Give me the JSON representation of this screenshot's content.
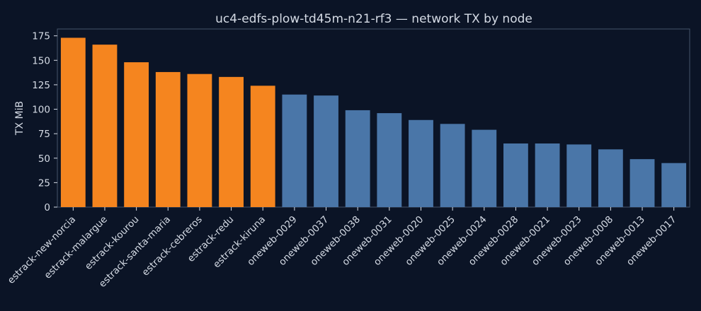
{
  "chart_data": {
    "type": "bar",
    "title": "uc4-edfs-plow-td45m-n21-rf3 — network TX by node",
    "xlabel": "",
    "ylabel": "TX MiB",
    "ylim": [
      0,
      182
    ],
    "yticks": [
      0,
      25,
      50,
      75,
      100,
      125,
      150,
      175
    ],
    "grid": false,
    "categories": [
      "estrack-new-norcia",
      "estrack-malargue",
      "estrack-kourou",
      "estrack-santa-maria",
      "estrack-cebreros",
      "estrack-redu",
      "estrack-kiruna",
      "oneweb-0029",
      "oneweb-0037",
      "oneweb-0038",
      "oneweb-0031",
      "oneweb-0020",
      "oneweb-0025",
      "oneweb-0024",
      "oneweb-0028",
      "oneweb-0021",
      "oneweb-0023",
      "oneweb-0008",
      "oneweb-0013",
      "oneweb-0017"
    ],
    "values": [
      173,
      166,
      148,
      138,
      136,
      133,
      124,
      115,
      114,
      99,
      96,
      89,
      85,
      79,
      65,
      65,
      64,
      59,
      49,
      45
    ],
    "groups": [
      "estrack",
      "estrack",
      "estrack",
      "estrack",
      "estrack",
      "estrack",
      "estrack",
      "oneweb",
      "oneweb",
      "oneweb",
      "oneweb",
      "oneweb",
      "oneweb",
      "oneweb",
      "oneweb",
      "oneweb",
      "oneweb",
      "oneweb",
      "oneweb",
      "oneweb"
    ],
    "colors": {
      "estrack": "#f5851f",
      "oneweb": "#4a76a8"
    }
  }
}
